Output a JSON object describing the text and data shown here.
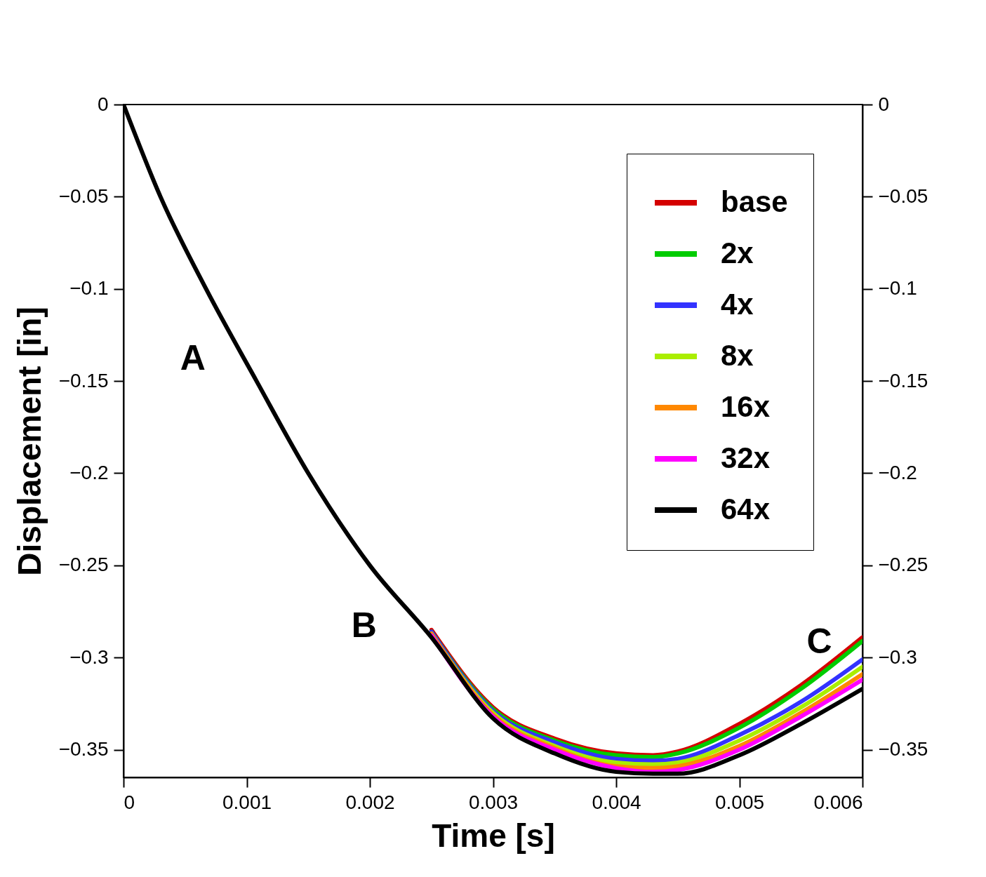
{
  "chart_data": {
    "type": "line",
    "xlabel": "Time [s]",
    "ylabel": "Displacement [in]",
    "x": [
      0,
      0.0003,
      0.00067,
      0.00108,
      0.0015,
      0.002,
      0.0025,
      0.003,
      0.0035,
      0.004,
      0.0043,
      0.0045,
      0.005,
      0.0055,
      0.006
    ],
    "series": [
      {
        "name": "base",
        "color": "#d40000",
        "values": [
          null,
          null,
          null,
          null,
          null,
          null,
          -0.285,
          -0.327,
          -0.344,
          -0.352,
          -0.353,
          -0.351,
          -0.336,
          -0.315,
          -0.289
        ]
      },
      {
        "name": "2x",
        "color": "#00cc00",
        "values": [
          null,
          null,
          null,
          null,
          null,
          null,
          -0.286,
          -0.328,
          -0.345,
          -0.353,
          -0.354,
          -0.352,
          -0.338,
          -0.317,
          -0.291
        ]
      },
      {
        "name": "4x",
        "color": "#3333ff",
        "values": [
          null,
          null,
          null,
          null,
          null,
          null,
          -0.286,
          -0.329,
          -0.346,
          -0.355,
          -0.356,
          -0.355,
          -0.342,
          -0.324,
          -0.301
        ]
      },
      {
        "name": "8x",
        "color": "#aaee00",
        "values": [
          null,
          null,
          null,
          null,
          null,
          null,
          -0.287,
          -0.33,
          -0.348,
          -0.357,
          -0.358,
          -0.357,
          -0.345,
          -0.327,
          -0.305
        ]
      },
      {
        "name": "16x",
        "color": "#ff8800",
        "values": [
          null,
          null,
          null,
          null,
          null,
          null,
          -0.287,
          -0.331,
          -0.349,
          -0.359,
          -0.36,
          -0.359,
          -0.348,
          -0.33,
          -0.309
        ]
      },
      {
        "name": "32x",
        "color": "#ff00ff",
        "values": [
          null,
          null,
          null,
          null,
          null,
          null,
          -0.288,
          -0.332,
          -0.35,
          -0.36,
          -0.362,
          -0.361,
          -0.35,
          -0.332,
          -0.312
        ]
      },
      {
        "name": "64x",
        "color": "#000000",
        "values": [
          0,
          -0.05,
          -0.1,
          -0.15,
          -0.2,
          -0.25,
          -0.289,
          -0.333,
          -0.352,
          -0.362,
          -0.363,
          -0.363,
          -0.353,
          -0.336,
          -0.317
        ]
      }
    ],
    "xlim": [
      0,
      0.006
    ],
    "xticks": [
      0,
      0.001,
      0.002,
      0.003,
      0.004,
      0.005,
      0.006
    ],
    "ylim": [
      -0.365,
      0
    ],
    "yticks": [
      0,
      -0.05,
      -0.1,
      -0.15,
      -0.2,
      -0.25,
      -0.3,
      -0.35
    ],
    "y2lim": [
      -0.365,
      0
    ],
    "y2ticks": [
      0,
      -0.05,
      -0.1,
      -0.15,
      -0.2,
      -0.25,
      -0.3,
      -0.35
    ],
    "annotations": [
      {
        "text": "A",
        "x": 0.00099,
        "y": -0.138
      },
      {
        "text": "B",
        "x": 0.00238,
        "y": -0.283
      },
      {
        "text": "C",
        "x": 0.00565,
        "y": -0.309
      }
    ],
    "legend": "top right",
    "grid": false,
    "marker": "none",
    "line_style": "solid"
  }
}
